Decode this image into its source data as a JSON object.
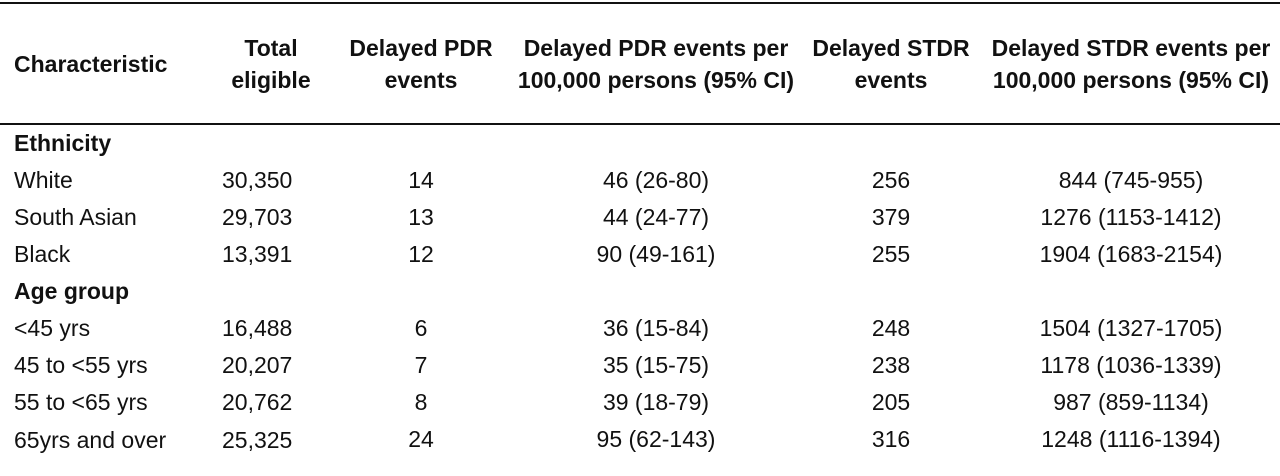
{
  "table": {
    "headers": [
      "Characteristic",
      "Total eligible",
      "Delayed PDR events",
      "Delayed PDR events per 100,000 persons (95% CI)",
      "Delayed STDR events",
      "Delayed STDR events per 100,000 persons (95% CI)"
    ],
    "groups": [
      {
        "label": "Ethnicity",
        "rows": [
          [
            "White",
            "30,350",
            "14",
            "46 (26-80)",
            "256",
            "844 (745-955)"
          ],
          [
            "South Asian",
            "29,703",
            "13",
            "44 (24-77)",
            "379",
            "1276 (1153-1412)"
          ],
          [
            "Black",
            "13,391",
            "12",
            "90 (49-161)",
            "255",
            "1904 (1683-2154)"
          ]
        ]
      },
      {
        "label": "Age group",
        "rows": [
          [
            "<45 yrs",
            "16,488",
            "6",
            "36 (15-84)",
            "248",
            "1504 (1327-1705)"
          ],
          [
            "45 to <55 yrs",
            "20,207",
            "7",
            "35 (15-75)",
            "238",
            "1178 (1036-1339)"
          ],
          [
            "55 to <65 yrs",
            "20,762",
            "8",
            "39 (18-79)",
            "205",
            "987 (859-1134)"
          ],
          [
            "65yrs and over",
            "25,325",
            "24",
            "95 (62-143)",
            "316",
            "1248 (1116-1394)"
          ]
        ]
      }
    ]
  }
}
